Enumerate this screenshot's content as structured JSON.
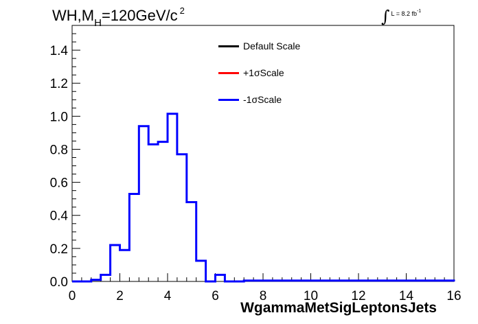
{
  "title": {
    "main": "WH,M",
    "sub": "H",
    "rest": "=120GeV/c",
    "sup": "2"
  },
  "lumi": {
    "integral": "∫",
    "text": "L = 8.2 fb",
    "sup": "-1"
  },
  "legend": [
    {
      "label": "Default Scale",
      "color": "#000000"
    },
    {
      "label": "+1σScale",
      "color": "#ff0000"
    },
    {
      "label": "-1σScale",
      "color": "#0000ff"
    }
  ],
  "chart_data": {
    "type": "line",
    "xlabel": "WgammaMetSigLeptonsJets",
    "ylabel": "",
    "xlim": [
      0,
      16
    ],
    "ylim": [
      0,
      1.55
    ],
    "xticks": [
      0,
      2,
      4,
      6,
      8,
      10,
      12,
      14,
      16
    ],
    "yticks": [
      0.0,
      0.2,
      0.4,
      0.6,
      0.8,
      1.0,
      1.2,
      1.4
    ],
    "ytick_labels": [
      "0.0",
      "0.2",
      "0.4",
      "0.6",
      "0.8",
      "1.0",
      "1.2",
      "1.4"
    ],
    "bin_edges": [
      0,
      0.4,
      0.8,
      1.2,
      1.6,
      2.0,
      2.4,
      2.8,
      3.2,
      3.6,
      4.0,
      4.4,
      4.8,
      5.2,
      5.6,
      6.0,
      6.4,
      6.8,
      7.2,
      16
    ],
    "series": [
      {
        "name": "-1σScale",
        "color": "#0000ff",
        "values": [
          0,
          0,
          0.01,
          0.04,
          0.22,
          0.19,
          0.53,
          0.94,
          0.83,
          0.845,
          1.015,
          0.77,
          0.48,
          0.125,
          0.0,
          0.04,
          0.0,
          0.0,
          0.005,
          0
        ]
      }
    ],
    "grid": false,
    "legend_position": "top-center"
  }
}
